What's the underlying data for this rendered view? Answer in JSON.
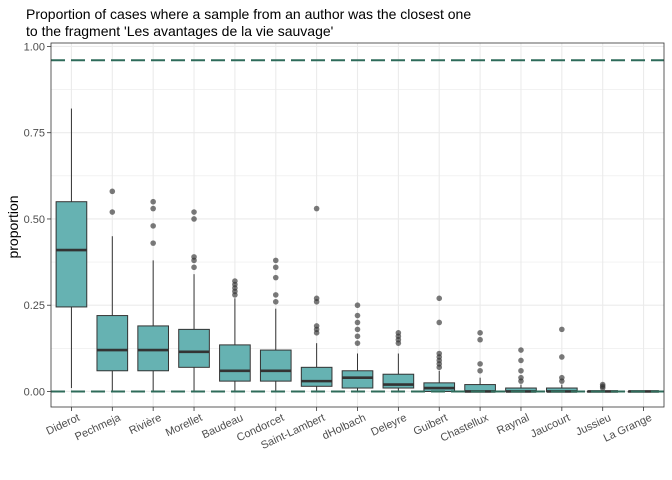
{
  "chart_data": {
    "type": "box",
    "title_lines": [
      "Proportion of cases where a sample from an author was the closest one",
      "to the fragment 'Les avantages de la vie sauvage'"
    ],
    "xlabel": "",
    "ylabel": "proportion",
    "ylim": [
      -0.045,
      1.01
    ],
    "yticks": [
      {
        "value": 0.0,
        "label": "0.00"
      },
      {
        "value": 0.25,
        "label": "0.25"
      },
      {
        "value": 0.5,
        "label": "0.50"
      },
      {
        "value": 0.75,
        "label": "0.75"
      },
      {
        "value": 1.0,
        "label": "1.00"
      }
    ],
    "reference_lines": [
      0.96,
      0.0
    ],
    "grid": true,
    "colors": {
      "box_fill": "#66b2b2",
      "box_stroke": "#333333",
      "reference_line": "#2e6b5a",
      "outlier": "#333333",
      "grid": "#ebebeb"
    },
    "categories": [
      "Diderot",
      "Pechmeja",
      "Rivière",
      "Morellet",
      "Baudeau",
      "Condorcet",
      "Saint-Lambert",
      "dHolbach",
      "Deleyre",
      "Guibert",
      "Chastellux",
      "Raynal",
      "Jaucourt",
      "Jussieu",
      "La Grange"
    ],
    "boxes": [
      {
        "min": 0.01,
        "q1": 0.245,
        "median": 0.41,
        "q3": 0.55,
        "max": 0.82,
        "outliers": []
      },
      {
        "min": 0.0,
        "q1": 0.06,
        "median": 0.12,
        "q3": 0.22,
        "max": 0.45,
        "outliers": [
          0.52,
          0.58
        ]
      },
      {
        "min": 0.0,
        "q1": 0.06,
        "median": 0.12,
        "q3": 0.19,
        "max": 0.38,
        "outliers": [
          0.43,
          0.48,
          0.53,
          0.55
        ]
      },
      {
        "min": 0.0,
        "q1": 0.07,
        "median": 0.115,
        "q3": 0.18,
        "max": 0.34,
        "outliers": [
          0.36,
          0.38,
          0.39,
          0.5,
          0.52
        ]
      },
      {
        "min": 0.0,
        "q1": 0.03,
        "median": 0.06,
        "q3": 0.135,
        "max": 0.27,
        "outliers": [
          0.28,
          0.29,
          0.3,
          0.31,
          0.32
        ]
      },
      {
        "min": 0.0,
        "q1": 0.03,
        "median": 0.06,
        "q3": 0.12,
        "max": 0.24,
        "outliers": [
          0.26,
          0.28,
          0.33,
          0.36,
          0.38
        ]
      },
      {
        "min": 0.0,
        "q1": 0.015,
        "median": 0.03,
        "q3": 0.07,
        "max": 0.14,
        "outliers": [
          0.17,
          0.18,
          0.19,
          0.26,
          0.27,
          0.53
        ]
      },
      {
        "min": 0.0,
        "q1": 0.01,
        "median": 0.04,
        "q3": 0.06,
        "max": 0.11,
        "outliers": [
          0.14,
          0.16,
          0.18,
          0.2,
          0.22,
          0.25
        ]
      },
      {
        "min": 0.0,
        "q1": 0.01,
        "median": 0.02,
        "q3": 0.05,
        "max": 0.11,
        "outliers": [
          0.14,
          0.15,
          0.16,
          0.17
        ]
      },
      {
        "min": 0.0,
        "q1": 0.0,
        "median": 0.01,
        "q3": 0.025,
        "max": 0.06,
        "outliers": [
          0.07,
          0.08,
          0.09,
          0.1,
          0.11,
          0.2,
          0.27
        ]
      },
      {
        "min": 0.0,
        "q1": 0.0,
        "median": 0.0,
        "q3": 0.02,
        "max": 0.04,
        "outliers": [
          0.06,
          0.08,
          0.15,
          0.17
        ]
      },
      {
        "min": 0.0,
        "q1": 0.0,
        "median": 0.0,
        "q3": 0.01,
        "max": 0.02,
        "outliers": [
          0.03,
          0.04,
          0.06,
          0.09,
          0.12
        ]
      },
      {
        "min": 0.0,
        "q1": 0.0,
        "median": 0.0,
        "q3": 0.01,
        "max": 0.02,
        "outliers": [
          0.03,
          0.04,
          0.1,
          0.18
        ]
      },
      {
        "min": 0.0,
        "q1": 0.0,
        "median": 0.0,
        "q3": 0.0,
        "max": 0.0,
        "outliers": [
          0.01,
          0.015,
          0.02
        ]
      },
      {
        "min": 0.0,
        "q1": 0.0,
        "median": 0.0,
        "q3": 0.0,
        "max": 0.0,
        "outliers": []
      }
    ]
  }
}
